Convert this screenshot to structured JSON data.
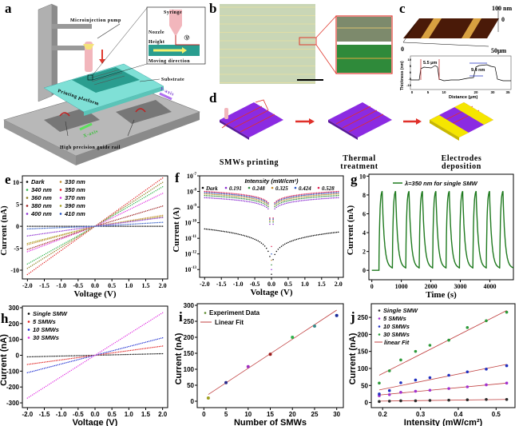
{
  "panels": {
    "a": "a",
    "b": "b",
    "c": "c",
    "d": "d",
    "e": "e",
    "f": "f",
    "g": "g",
    "h": "h",
    "i": "i",
    "j": "j"
  },
  "panel_a": {
    "microinjection_pump": "Microinjection pump",
    "substrate": "Substrate",
    "printing_platform": "Printing platform",
    "y_axis": "Y-axis",
    "x_axis": "X-axis",
    "guide_rail": "High precision guide rail",
    "inset": {
      "syringe": "Syringe",
      "nozzle": "Nozzle",
      "height": "Height",
      "moving_direction": "Moving direction",
      "voltage_symbol": "V"
    },
    "colors": {
      "platform": "#7fe0d6",
      "substrate": "#2a9d8f",
      "base": "#a9a9a9",
      "pump": "#f2b6bc",
      "arrow": "#e03a2f"
    }
  },
  "panel_c": {
    "z_top": "100 nm",
    "z_zero": "0",
    "x_zero": "0",
    "x_end": "50μm",
    "profile": {
      "ylabel": "Thickness (nm)",
      "xlabel": "Distance (μm)",
      "yticks": [
        "10",
        "5",
        "0",
        "-5",
        "-10"
      ],
      "xticks": [
        "0",
        "5",
        "10",
        "20",
        "30",
        "35"
      ],
      "width_annotation": "5.5 μm",
      "height_annotation": "9.4 nm"
    }
  },
  "panel_d": {
    "steps": [
      {
        "label": [
          "SMWs printing"
        ]
      },
      {
        "label": [
          "Thermal",
          "treatment"
        ]
      },
      {
        "label": [
          "Electrodes",
          "deposition"
        ]
      }
    ],
    "colors": {
      "substrate": "#8b2be2",
      "wire": "#e0302a",
      "electrode": "#f5e600"
    }
  },
  "chart_data": [
    {
      "panel": "e",
      "type": "scatter",
      "xlabel": "Voltage (V)",
      "ylabel": "Current (nA)",
      "xlim": [
        -2.15,
        2.15
      ],
      "ylim": [
        -12,
        11.5
      ],
      "xticks": [
        "-2.0",
        "-1.5",
        "-1.0",
        "-0.5",
        "0.0",
        "0.5",
        "1.0",
        "1.5",
        "2.0"
      ],
      "yticks": [
        "-10",
        "-5",
        "0",
        "5",
        "10"
      ],
      "legend_placement": "top-left",
      "series": [
        {
          "name": "Dark",
          "color": "#000000",
          "current_at_minus2V": 0,
          "current_at_2V": 0
        },
        {
          "name": "330 nm",
          "color": "#c08a2a",
          "current_at_minus2V": -4.2,
          "current_at_2V": 2.5
        },
        {
          "name": "340 nm",
          "color": "#2db34a",
          "current_at_minus2V": -8.6,
          "current_at_2V": 9.0
        },
        {
          "name": "350 nm",
          "color": "#e02020",
          "current_at_minus2V": -11.0,
          "current_at_2V": 11.0
        },
        {
          "name": "360 nm",
          "color": "#8a7a1a",
          "current_at_minus2V": -9.6,
          "current_at_2V": 10.0
        },
        {
          "name": "370 nm",
          "color": "#e030e0",
          "current_at_minus2V": -5.8,
          "current_at_2V": 7.5
        },
        {
          "name": "380 nm",
          "color": "#9a1a1a",
          "current_at_minus2V": -5.3,
          "current_at_2V": 4.6
        },
        {
          "name": "390 nm",
          "color": "#a8a020",
          "current_at_minus2V": -3.9,
          "current_at_2V": 2.2
        },
        {
          "name": "400 nm",
          "color": "#8a2ad0",
          "current_at_minus2V": -2.2,
          "current_at_2V": 2.0
        },
        {
          "name": "410 nm",
          "color": "#2050c0",
          "current_at_minus2V": -0.6,
          "current_at_2V": 0.9
        }
      ]
    },
    {
      "panel": "f",
      "type": "scatter",
      "yscale": "log",
      "xlabel": "Voltage (V)",
      "ylabel": "Current (A)",
      "xlim": [
        -2.15,
        2.15
      ],
      "ylim_exp": [
        -13.5,
        -7
      ],
      "xticks": [
        "-2.0",
        "-1.5",
        "-1.0",
        "-0.5",
        "0.0",
        "0.5",
        "1.0",
        "1.5",
        "2.0"
      ],
      "yticks_exp": [
        "-7",
        "-8",
        "-9",
        "-10",
        "-11",
        "-12",
        "-13"
      ],
      "legend_title": "Intensity (mW/cm²)",
      "legend_placement": "top",
      "series": [
        {
          "name": "Dark",
          "color": "#000000",
          "current_at_minus2V": 4e-11,
          "current_at_2V": 2.5e-11,
          "current_at_0V": 5e-14
        },
        {
          "name": "0.191",
          "color": "#8a2ad0",
          "current_at_minus2V": 4e-09,
          "current_at_2V": 4e-09,
          "current_at_0V": 1e-13
        },
        {
          "name": "0.248",
          "color": "#2d8a3a",
          "current_at_minus2V": 5.5e-09,
          "current_at_2V": 5.5e-09,
          "current_at_0V": 2e-13
        },
        {
          "name": "0.325",
          "color": "#c08a2a",
          "current_at_minus2V": 7e-09,
          "current_at_2V": 7e-09,
          "current_at_0V": 4e-13
        },
        {
          "name": "0.424",
          "color": "#2050c0",
          "current_at_minus2V": 8.5e-09,
          "current_at_2V": 8.5e-09,
          "current_at_0V": 1e-12
        },
        {
          "name": "0.528",
          "color": "#e02050",
          "current_at_minus2V": 1e-08,
          "current_at_2V": 1e-08,
          "current_at_0V": 3e-12
        }
      ]
    },
    {
      "panel": "g",
      "type": "line",
      "xlabel": "Time (s)",
      "ylabel": "Current (nA)",
      "xlim": [
        -100,
        4800
      ],
      "ylim": [
        -1,
        10.2
      ],
      "xticks": [
        "0",
        "1000",
        "2000",
        "3000",
        "4000"
      ],
      "yticks": [
        "0",
        "2",
        "4",
        "6",
        "8",
        "10"
      ],
      "series": [
        {
          "name": "λ=350 nm for single SMW",
          "color": "#1f7a1f",
          "light_on_times": [
            240,
            695,
            1150,
            1605,
            2060,
            2515,
            2970,
            3425,
            3880,
            4335
          ],
          "peak_current": 8.4,
          "baseline_current": 0.2
        }
      ],
      "legend_placement": "top"
    },
    {
      "panel": "h",
      "type": "scatter",
      "xlabel": "Voltage (V)",
      "ylabel": "Current (nA)",
      "xlim": [
        -2.15,
        2.15
      ],
      "ylim": [
        -330,
        310
      ],
      "xticks": [
        "-2.0",
        "-1.5",
        "-1.0",
        "-0.5",
        "0.0",
        "0.5",
        "1.0",
        "1.5",
        "2.0"
      ],
      "yticks": [
        "-300",
        "-200",
        "-100",
        "0",
        "100",
        "200",
        "300"
      ],
      "legend_placement": "top-left",
      "series": [
        {
          "name": "Single SMW",
          "color": "#000000",
          "current_at_minus2V": -10,
          "current_at_2V": 10
        },
        {
          "name": "5 SMWs",
          "color": "#e02020",
          "current_at_minus2V": -58,
          "current_at_2V": 58
        },
        {
          "name": "10 SMWs",
          "color": "#1a2ad0",
          "current_at_minus2V": -110,
          "current_at_2V": 110
        },
        {
          "name": "30 SMWs",
          "color": "#e030e0",
          "current_at_minus2V": -270,
          "current_at_2V": 268
        }
      ]
    },
    {
      "panel": "i",
      "type": "scatter",
      "xlabel": "Number of SMWs",
      "ylabel": "Current (nA)",
      "xlim": [
        -1.5,
        31.5
      ],
      "ylim": [
        -20,
        305
      ],
      "xticks": [
        "0",
        "5",
        "10",
        "15",
        "20",
        "25",
        "30"
      ],
      "yticks": [
        "0",
        "50",
        "100",
        "150",
        "200",
        "250",
        "300"
      ],
      "legend_placement": "top-left",
      "series": [
        {
          "name": "Experiment Data",
          "color": "#5a8a2a",
          "x": [
            1,
            5,
            10,
            15,
            20,
            25,
            30
          ],
          "y": [
            10,
            58,
            108,
            147,
            200,
            235,
            268
          ],
          "point_colors": [
            "#a0a020",
            "#2a2a8a",
            "#a030c0",
            "#9a1a1a",
            "#2db34a",
            "#3a8a8a",
            "#1a2a9a"
          ]
        },
        {
          "name": "Linear Fit",
          "color": "#c04040",
          "x": [
            1,
            30
          ],
          "y": [
            21,
            285
          ]
        }
      ]
    },
    {
      "panel": "j",
      "type": "scatter",
      "xlabel": "Intensity (mW/cm²)",
      "ylabel": "Current (nA)",
      "xlim": [
        0.17,
        0.55
      ],
      "ylim": [
        -15,
        290
      ],
      "xticks": [
        "0.2",
        "0.3",
        "0.4",
        "0.5"
      ],
      "yticks": [
        "0",
        "50",
        "100",
        "150",
        "200",
        "250"
      ],
      "legend_placement": "top-left",
      "x": [
        0.191,
        0.218,
        0.248,
        0.287,
        0.325,
        0.375,
        0.424,
        0.474,
        0.528
      ],
      "series": [
        {
          "name": "Single SMW",
          "color": "#2a2a2a",
          "y": [
            3,
            4,
            5,
            5,
            6,
            7,
            8,
            9,
            9
          ],
          "fit": [
            4,
            9
          ]
        },
        {
          "name": "5 SMWs",
          "color": "#a030d0",
          "y": [
            20,
            23,
            30,
            33,
            36,
            41,
            46,
            52,
            57
          ],
          "fit": [
            22,
            57
          ]
        },
        {
          "name": "10 SMWs",
          "color": "#2030c0",
          "y": [
            25,
            35,
            58,
            66,
            73,
            80,
            90,
            98,
            108
          ],
          "fit": [
            37,
            112
          ]
        },
        {
          "name": "30 SMWs",
          "color": "#2d9a3a",
          "y": [
            57,
            93,
            125,
            150,
            168,
            183,
            220,
            240,
            265
          ],
          "fit": [
            80,
            270
          ]
        }
      ],
      "fit_name": "linear Fit",
      "fit_color": "#c04040"
    }
  ]
}
